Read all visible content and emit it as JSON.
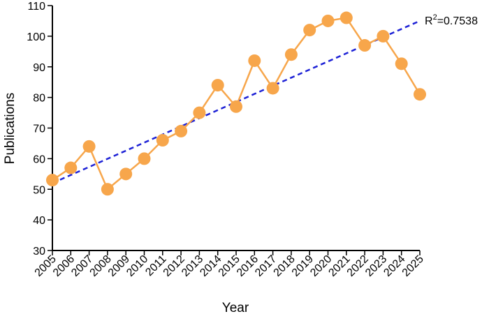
{
  "chart_data": {
    "type": "line",
    "title": "",
    "xlabel": "Year",
    "ylabel": "Publications",
    "categories": [
      "2005",
      "2006",
      "2007",
      "2008",
      "2009",
      "2010",
      "2011",
      "2012",
      "2013",
      "2014",
      "2015",
      "2016",
      "2017",
      "2018",
      "2019",
      "2020",
      "2021",
      "2022",
      "2023",
      "2024",
      "2025"
    ],
    "series": [
      {
        "values": [
          53,
          57,
          64,
          50,
          55,
          60,
          66,
          69,
          75,
          84,
          77,
          92,
          83,
          94,
          102,
          105,
          106,
          97,
          100,
          91,
          81
        ],
        "color": "#F7A64B"
      }
    ],
    "trendline": {
      "label_prefix": "R",
      "label_sup": "2",
      "label_value": "=0.7538",
      "start": {
        "x": "2005",
        "y": 52
      },
      "end": {
        "x": "2025",
        "y": 105
      },
      "color": "#1E22D6",
      "style": "dashed"
    },
    "ylim": [
      30,
      110
    ],
    "yticks": [
      30,
      40,
      50,
      60,
      70,
      80,
      90,
      100,
      110
    ],
    "grid": false,
    "legend": "none"
  }
}
